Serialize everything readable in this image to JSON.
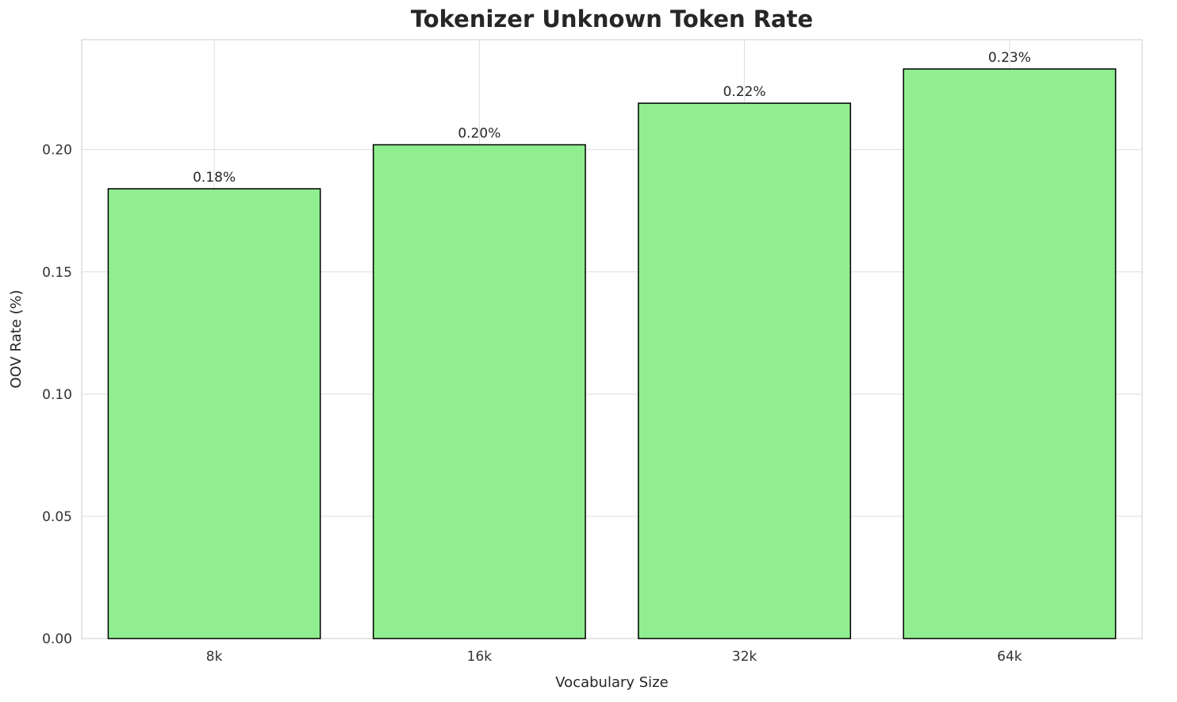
{
  "chart_data": {
    "type": "bar",
    "title": "Tokenizer Unknown Token Rate",
    "xlabel": "Vocabulary Size",
    "ylabel": "OOV Rate (%)",
    "categories": [
      "8k",
      "16k",
      "32k",
      "64k"
    ],
    "values": [
      0.184,
      0.202,
      0.219,
      0.233
    ],
    "value_labels": [
      "0.18%",
      "0.20%",
      "0.22%",
      "0.23%"
    ],
    "ylim": [
      0,
      0.245
    ],
    "yticks": [
      0.0,
      0.05,
      0.1,
      0.15,
      0.2
    ],
    "grid": true,
    "legend": "none",
    "bar_color": "#90EE90",
    "bar_edge_color": "#000000",
    "bar_width_fraction": 0.8
  }
}
